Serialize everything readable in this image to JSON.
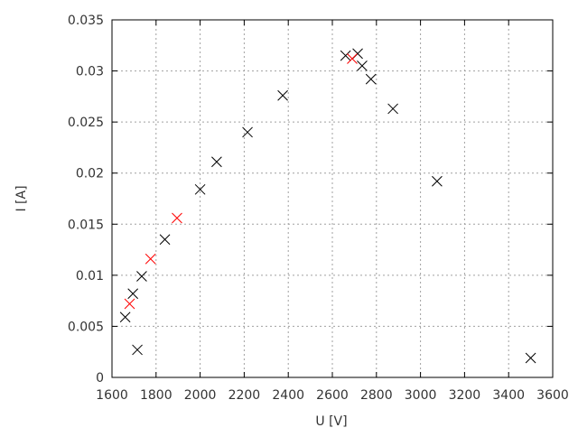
{
  "chart_data": {
    "type": "scatter",
    "title": "",
    "xlabel": "U [V]",
    "ylabel": "I [A]",
    "xlim": [
      1600,
      3600
    ],
    "ylim": [
      0,
      0.035
    ],
    "xticks": [
      "1600",
      "1800",
      "2000",
      "2200",
      "2400",
      "2600",
      "2800",
      "3000",
      "3200",
      "3400",
      "3600"
    ],
    "yticks": [
      "0",
      "0.005",
      "0.01",
      "0.015",
      "0.02",
      "0.025",
      "0.03",
      "0.035"
    ],
    "grid": true,
    "marker": "x",
    "series": [
      {
        "color": "#000000",
        "points": [
          [
            1660,
            0.0059
          ],
          [
            1695,
            0.0082
          ],
          [
            1715,
            0.0027
          ],
          [
            1735,
            0.0099
          ],
          [
            1840,
            0.0135
          ],
          [
            2000,
            0.0184
          ],
          [
            2075,
            0.0211
          ],
          [
            2215,
            0.024
          ],
          [
            2375,
            0.0276
          ],
          [
            2660,
            0.0315
          ],
          [
            2715,
            0.0317
          ],
          [
            2735,
            0.0305
          ],
          [
            2775,
            0.0292
          ],
          [
            2875,
            0.0263
          ],
          [
            3075,
            0.0192
          ],
          [
            3500,
            0.0019
          ]
        ]
      },
      {
        "color": "#ff0000",
        "points": [
          [
            1680,
            0.0072
          ],
          [
            1775,
            0.0116
          ],
          [
            1895,
            0.0156
          ],
          [
            2690,
            0.0312
          ]
        ]
      }
    ]
  }
}
